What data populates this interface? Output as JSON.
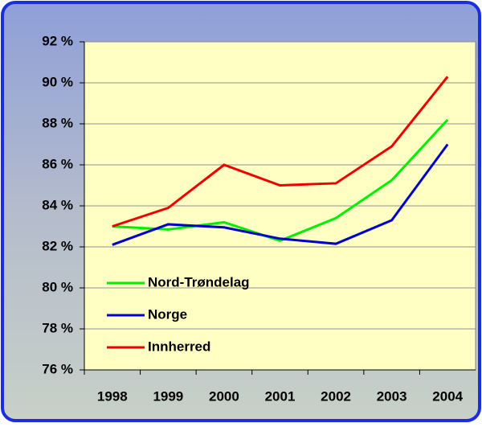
{
  "chart_data": {
    "type": "line",
    "categories": [
      "1998",
      "1999",
      "2000",
      "2001",
      "2002",
      "2003",
      "2004"
    ],
    "series": [
      {
        "name": "Nord-Trøndelag",
        "color": "#00ee00",
        "values": [
          83.0,
          82.85,
          83.2,
          82.3,
          83.4,
          85.25,
          88.2
        ]
      },
      {
        "name": "Norge",
        "color": "#0000cc",
        "values": [
          82.1,
          83.1,
          82.95,
          82.4,
          82.15,
          83.3,
          87.0
        ]
      },
      {
        "name": "Innherred",
        "color": "#ee0000",
        "values": [
          83.0,
          83.9,
          86.0,
          85.0,
          85.1,
          86.9,
          90.3
        ]
      }
    ],
    "ylim": [
      76,
      92
    ],
    "yticks": [
      {
        "value": 76,
        "label": "76 %"
      },
      {
        "value": 78,
        "label": "78 %"
      },
      {
        "value": 80,
        "label": "80 %"
      },
      {
        "value": 82,
        "label": "82 %"
      },
      {
        "value": 84,
        "label": "84 %"
      },
      {
        "value": 86,
        "label": "86 %"
      },
      {
        "value": 88,
        "label": "88 %"
      },
      {
        "value": 90,
        "label": "90 %"
      },
      {
        "value": 92,
        "label": "92 %"
      }
    ],
    "grid": true,
    "legend": "lower left"
  }
}
